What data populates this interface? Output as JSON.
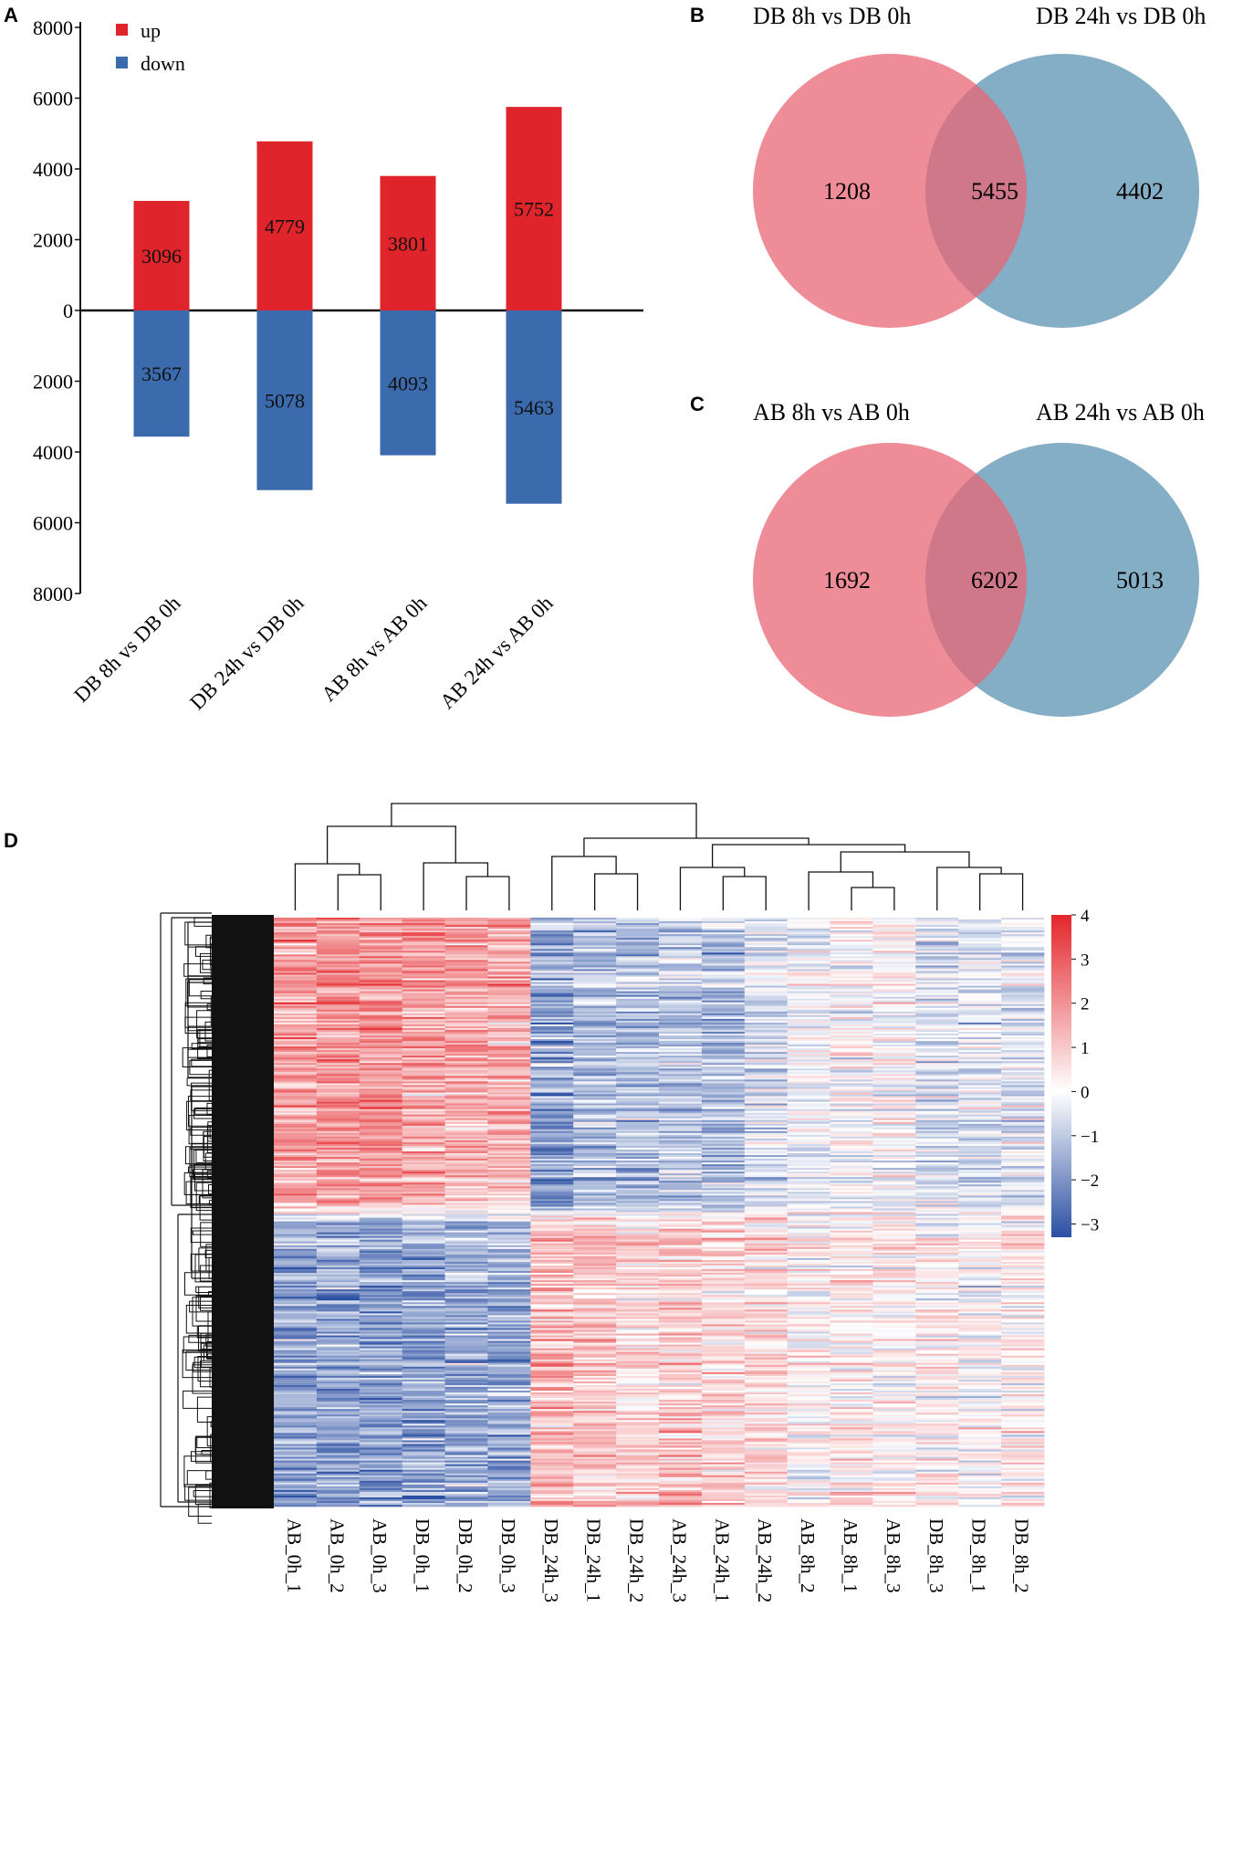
{
  "panels": {
    "a": "A",
    "b": "B",
    "c": "C",
    "d": "D"
  },
  "colors": {
    "up": "#e0242b",
    "down": "#3b6aad",
    "venn_left": "#e86674",
    "venn_right": "#6fa0bb",
    "heat_high": "#e3262b",
    "heat_mid": "#ffffff",
    "heat_low": "#2b4fa2"
  },
  "chart_data": [
    {
      "type": "bar",
      "title": "",
      "categories": [
        "DB 8h vs DB 0h",
        "DB 24h vs DB 0h",
        "AB 8h vs AB 0h",
        "AB 24h vs AB 0h"
      ],
      "series": [
        {
          "name": "up",
          "values": [
            3096,
            4779,
            3801,
            5752
          ]
        },
        {
          "name": "down",
          "values": [
            3567,
            5078,
            4093,
            5463
          ]
        }
      ],
      "up_labels": [
        "3096",
        "4779",
        "3801",
        "5752"
      ],
      "down_labels": [
        "3567",
        "5078",
        "4093",
        "5463"
      ],
      "ylim": [
        -8000,
        8000
      ],
      "yticks": [
        8000,
        6000,
        4000,
        2000,
        0,
        -2000,
        -4000,
        -6000,
        -8000
      ],
      "ytick_labels": [
        "8000",
        "6000",
        "4000",
        "2000",
        "0",
        "2000",
        "4000",
        "6000",
        "8000"
      ],
      "xlabel": "",
      "ylabel": "",
      "legend": [
        "up",
        "down"
      ],
      "legend_position": "top-left"
    },
    {
      "type": "venn",
      "sets": [
        "DB 8h vs DB 0h",
        "DB 24h vs DB 0h"
      ],
      "left_only": 1208,
      "intersection": 5455,
      "right_only": 4402
    },
    {
      "type": "venn",
      "sets": [
        "AB 8h vs AB 0h",
        "AB 24h vs AB 0h"
      ],
      "left_only": 1692,
      "intersection": 6202,
      "right_only": 5013
    },
    {
      "type": "heatmap",
      "columns": [
        "AB_0h_1",
        "AB_0h_2",
        "AB_0h_3",
        "DB_0h_1",
        "DB_0h_2",
        "DB_0h_3",
        "DB_24h_3",
        "DB_24h_1",
        "DB_24h_2",
        "AB_24h_3",
        "AB_24h_1",
        "AB_24h_2",
        "AB_8h_2",
        "AB_8h_1",
        "AB_8h_3",
        "DB_8h_3",
        "DB_8h_1",
        "DB_8h_2"
      ],
      "colorbar_ticks": [
        "4",
        "3",
        "2",
        "1",
        "0",
        "−1",
        "−2",
        "−3"
      ],
      "colorbar_values": [
        4,
        3,
        2,
        1,
        0,
        -1,
        -2,
        -3
      ],
      "value_range": [
        -3.3,
        4
      ],
      "column_group_trends": [
        [
          1.4,
          1.5,
          1.6,
          1.4,
          1.2,
          1.1,
          -1.5,
          -1.0,
          -1.0,
          -0.9,
          -1.0,
          -0.5,
          -0.2,
          0.0,
          0.0,
          -0.5,
          -0.4,
          -0.4
        ],
        [
          -1.4,
          -1.4,
          -1.5,
          -1.5,
          -1.3,
          -1.3,
          1.0,
          0.9,
          0.6,
          0.8,
          0.6,
          0.5,
          0.1,
          0.3,
          0.2,
          0.2,
          0.1,
          0.2
        ]
      ]
    }
  ]
}
